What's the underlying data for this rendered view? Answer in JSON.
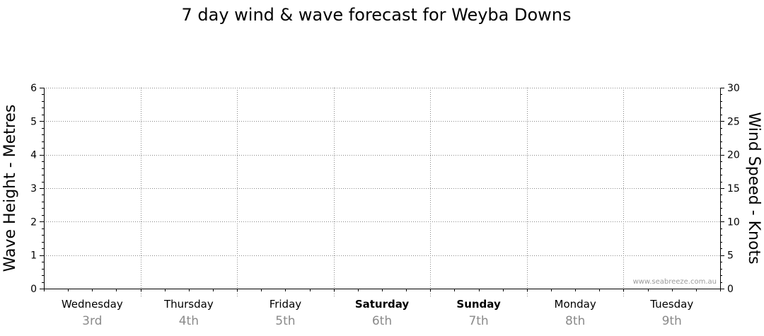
{
  "chart_data": {
    "type": "line",
    "title": "7 day wind & wave forecast for Weyba Downs",
    "ylabel_left": "Wave Height - Metres",
    "ylabel_right": "Wind Speed - Knots",
    "ylim_left": [
      0,
      6
    ],
    "ylim_right": [
      0,
      30
    ],
    "yticks_left": [
      "0",
      "1",
      "2",
      "3",
      "4",
      "5",
      "6"
    ],
    "yticks_right": [
      "0",
      "5",
      "10",
      "15",
      "20",
      "25",
      "30"
    ],
    "grid": true,
    "days": [
      {
        "name": "Wednesday",
        "date": "3rd",
        "weekend": false
      },
      {
        "name": "Thursday",
        "date": "4th",
        "weekend": false
      },
      {
        "name": "Friday",
        "date": "5th",
        "weekend": false
      },
      {
        "name": "Saturday",
        "date": "6th",
        "weekend": true
      },
      {
        "name": "Sunday",
        "date": "7th",
        "weekend": true
      },
      {
        "name": "Monday",
        "date": "8th",
        "weekend": false
      },
      {
        "name": "Tuesday",
        "date": "9th",
        "weekend": false
      }
    ],
    "series": [],
    "watermark": "www.seabreeze.com.au"
  }
}
